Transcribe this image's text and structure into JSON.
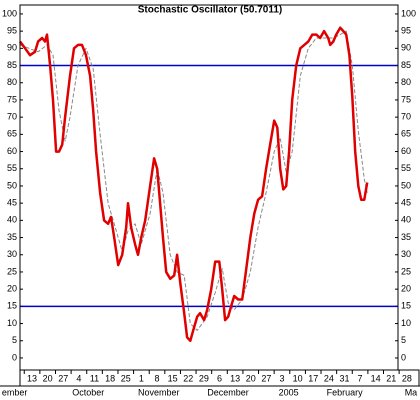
{
  "chart_data": {
    "type": "line",
    "title": "Stochastic Oscillator (50.7011)",
    "xlim": [
      -5.4,
      164
    ],
    "ylim": [
      -3.5,
      102.6
    ],
    "yticks": [
      0,
      5,
      10,
      15,
      20,
      25,
      30,
      35,
      40,
      45,
      50,
      55,
      60,
      65,
      70,
      75,
      80,
      85,
      90,
      95,
      100
    ],
    "xticks": [
      {
        "value": 0,
        "label": "13"
      },
      {
        "value": 7,
        "label": "20"
      },
      {
        "value": 14,
        "label": "27"
      },
      {
        "value": 21,
        "label": "4"
      },
      {
        "value": 28,
        "label": "11"
      },
      {
        "value": 35,
        "label": "18"
      },
      {
        "value": 42,
        "label": "25"
      },
      {
        "value": 49,
        "label": "1"
      },
      {
        "value": 56,
        "label": "8"
      },
      {
        "value": 63,
        "label": "15"
      },
      {
        "value": 70,
        "label": "22"
      },
      {
        "value": 77,
        "label": "29"
      },
      {
        "value": 84,
        "label": "6"
      },
      {
        "value": 91,
        "label": "13"
      },
      {
        "value": 98,
        "label": "20"
      },
      {
        "value": 105,
        "label": "27"
      },
      {
        "value": 112,
        "label": "3"
      },
      {
        "value": 119,
        "label": "10"
      },
      {
        "value": 126,
        "label": "17"
      },
      {
        "value": 133,
        "label": "24"
      },
      {
        "value": 140,
        "label": "31"
      },
      {
        "value": 147,
        "label": "7"
      },
      {
        "value": 154,
        "label": "14"
      },
      {
        "value": 161,
        "label": "21"
      },
      {
        "value": 168,
        "label": "28"
      }
    ],
    "months": [
      {
        "x": -13.5,
        "label": "ember"
      },
      {
        "x": 18,
        "label": "October"
      },
      {
        "x": 47.5,
        "label": "November"
      },
      {
        "x": 78.5,
        "label": "December"
      },
      {
        "x": 110.5,
        "label": "2005"
      },
      {
        "x": 132,
        "label": "February"
      },
      {
        "x": 167,
        "label": "Ma"
      }
    ],
    "reference_lines": [
      85,
      15
    ],
    "reference_color": "#0000cc",
    "series": [
      {
        "color": "#e00000",
        "dashed": false,
        "x": [
          -5.4,
          -3.1,
          -0.9,
          1.3,
          2.7,
          4.5,
          5.8,
          6.7,
          8.1,
          9.4,
          10.8,
          12.1,
          13.5,
          14.8,
          17.0,
          18.8,
          20.6,
          22.4,
          24.2,
          26.0,
          27.4,
          28.7,
          30.5,
          32.3,
          34.1,
          35.4,
          36.8,
          38.6,
          40.4,
          42.2,
          43.0,
          44.4,
          46.2,
          47.5,
          48.9,
          50.7,
          52.9,
          54.7,
          56.1,
          57.4,
          58.7,
          60.1,
          61.9,
          63.7,
          65.0,
          66.4,
          68.2,
          69.5,
          70.9,
          72.2,
          74.0,
          75.3,
          77.1,
          78.5,
          80.3,
          82.1,
          83.9,
          85.2,
          86.5,
          87.9,
          89.2,
          90.6,
          92.4,
          94.2,
          96.0,
          97.8,
          99.6,
          101.3,
          103.1,
          104.9,
          106.7,
          108.5,
          109.9,
          111.2,
          112.6,
          113.9,
          115.2,
          116.6,
          118.4,
          120.2,
          122.0,
          123.8,
          125.6,
          127.4,
          129.1,
          130.9,
          132.7,
          133.6,
          135.0,
          136.3,
          138.1,
          139.5,
          140.8,
          142.2,
          143.5,
          144.8,
          146.2,
          147.5,
          148.9,
          150.2
        ],
        "values": [
          92,
          90,
          88,
          89,
          92,
          93,
          92,
          94,
          85,
          75,
          60,
          60,
          62,
          70,
          82,
          90,
          91,
          91,
          88,
          82,
          72,
          60,
          48,
          40,
          39,
          41,
          35,
          27,
          30,
          38,
          45,
          38,
          33,
          30,
          35,
          40,
          50,
          58,
          55,
          45,
          35,
          25,
          23,
          24,
          30,
          22,
          13,
          6,
          5,
          8,
          12,
          13,
          11,
          14,
          20,
          28,
          28,
          20,
          11,
          12,
          15,
          18,
          17,
          17,
          26,
          35,
          42,
          46,
          47,
          55,
          62,
          69,
          67,
          55,
          49,
          50,
          60,
          75,
          85,
          90,
          91,
          92,
          94,
          94,
          93,
          95,
          93,
          91,
          92,
          94,
          96,
          95,
          94,
          88,
          76,
          60,
          50,
          46,
          46,
          51
        ]
      },
      {
        "color": "#888888",
        "dashed": true,
        "x": [
          -5.4,
          2.7,
          6.7,
          9.4,
          12.1,
          14.8,
          17.0,
          20.6,
          24.2,
          27.4,
          30.5,
          34.1,
          36.8,
          40.4,
          43.0,
          46.2,
          48.9,
          52.9,
          56.1,
          58.7,
          61.9,
          65.0,
          68.2,
          70.9,
          74.0,
          78.5,
          82.1,
          85.2,
          87.9,
          90.6,
          94.2,
          97.8,
          101.3,
          104.9,
          108.5,
          111.2,
          113.9,
          116.6,
          120.2,
          123.8,
          127.4,
          130.9,
          135.0,
          138.1,
          140.8,
          143.5,
          146.2,
          148.9,
          150.2
        ],
        "values": [
          91,
          89,
          91,
          88,
          72,
          63,
          70,
          85,
          90,
          84,
          65,
          45,
          39,
          31,
          37,
          39,
          33,
          42,
          55,
          48,
          30,
          25,
          24,
          10,
          8,
          12,
          19,
          26,
          16,
          14,
          17,
          25,
          38,
          48,
          60,
          64,
          54,
          60,
          82,
          90,
          93,
          93,
          93,
          94,
          95,
          85,
          66,
          52,
          48
        ]
      }
    ]
  }
}
